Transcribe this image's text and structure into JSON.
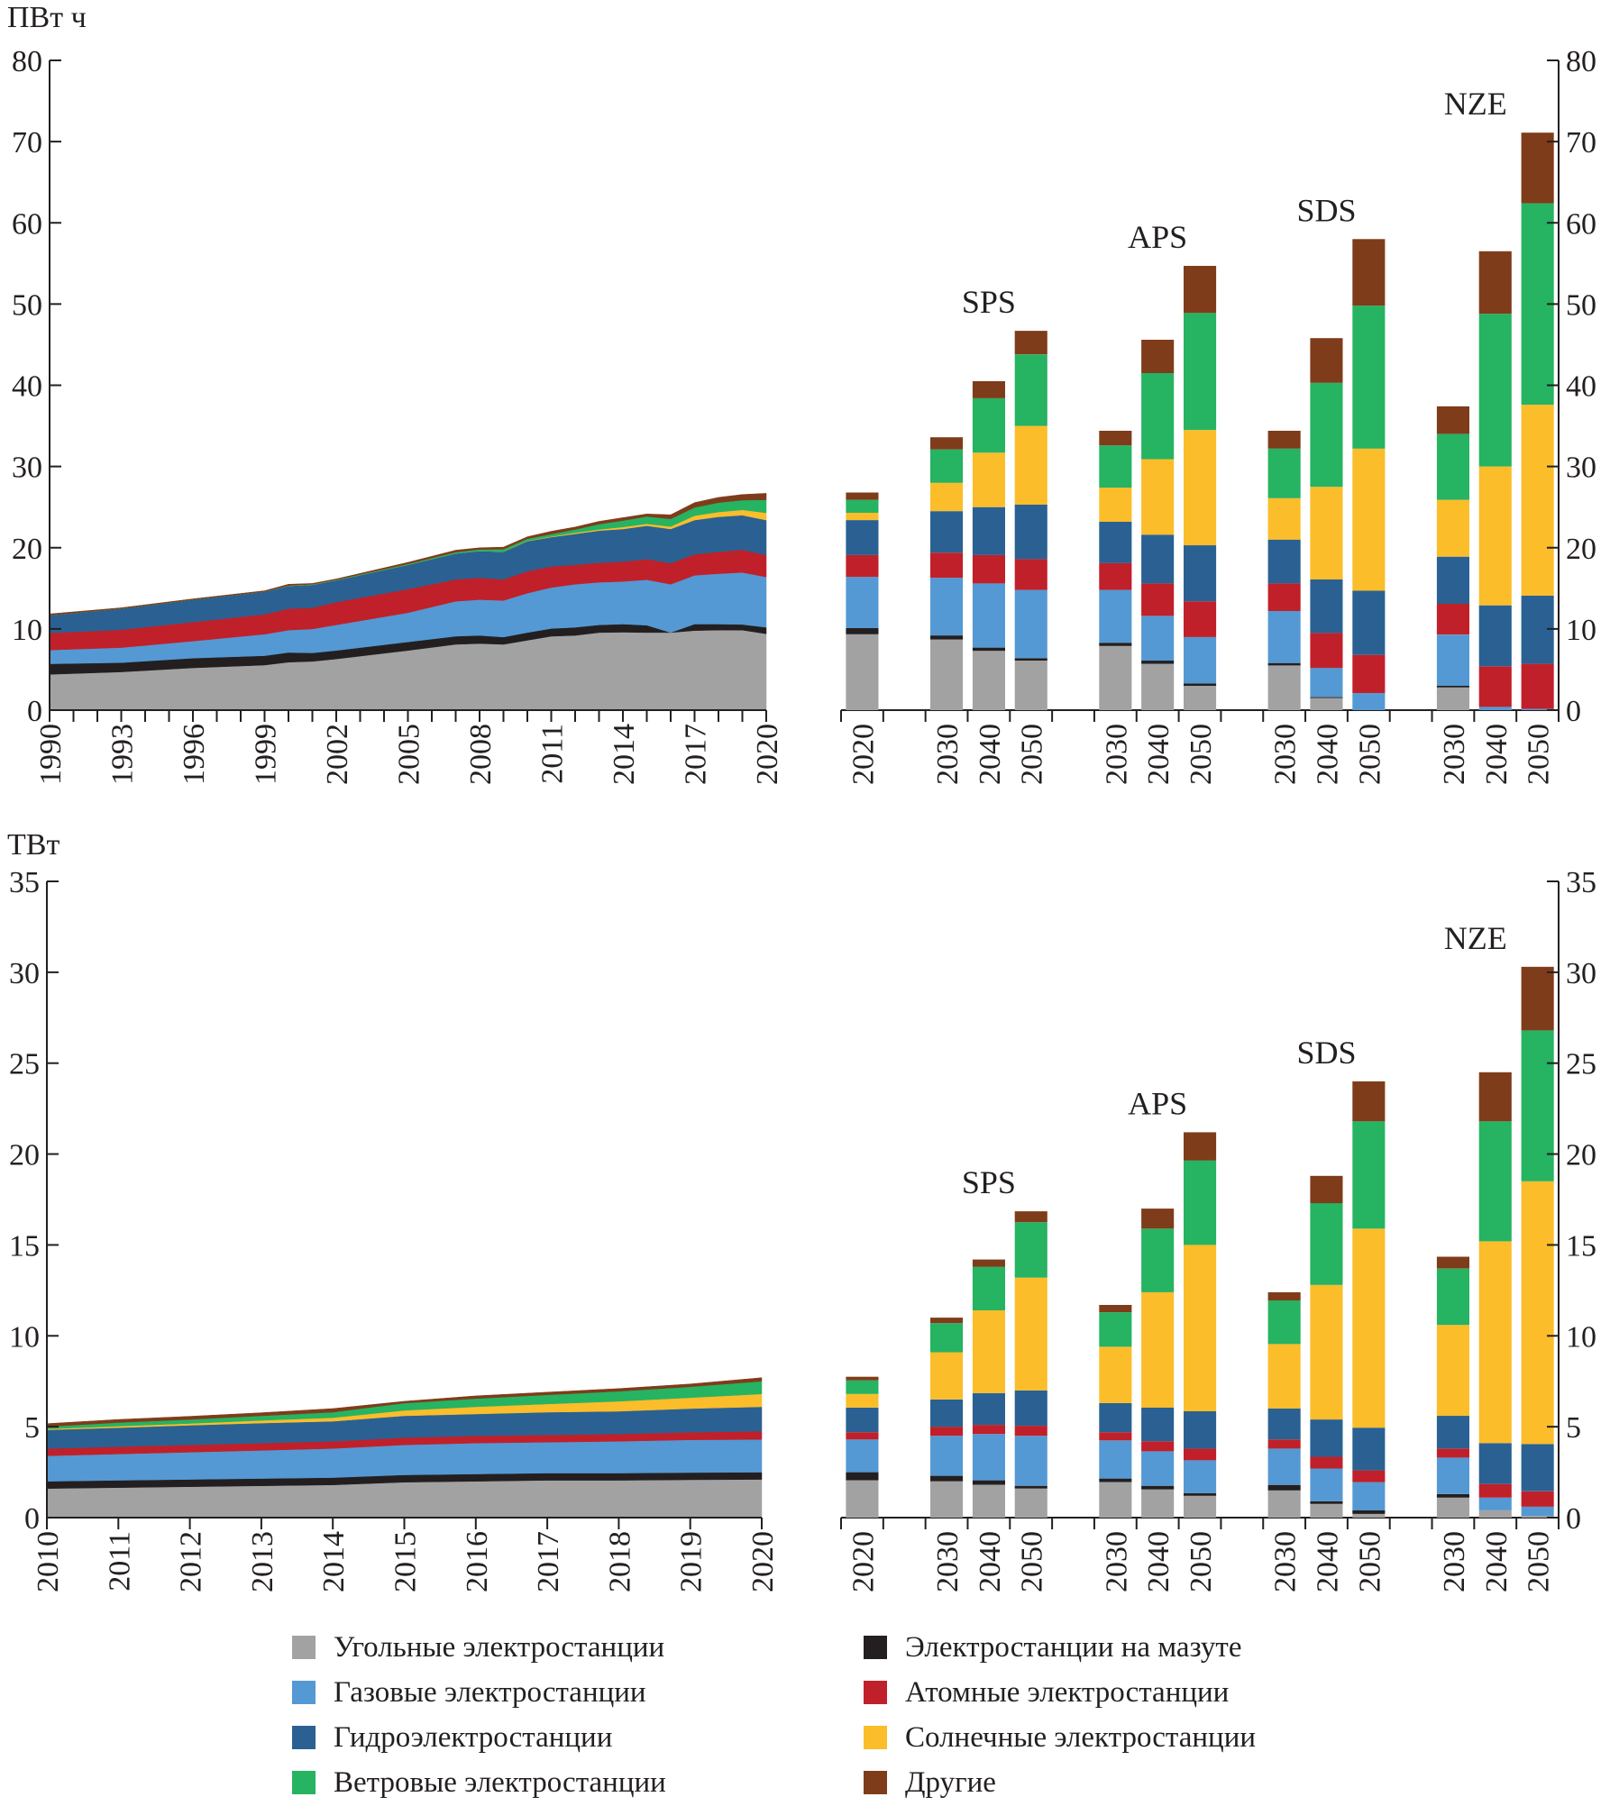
{
  "series": [
    {
      "key": "coal",
      "name": "Угольные электростанции",
      "color": "#a2a2a2"
    },
    {
      "key": "oil",
      "name": "Электростанции на мазуте",
      "color": "#231f20"
    },
    {
      "key": "gas",
      "name": "Газовые электростанции",
      "color": "#5499d3"
    },
    {
      "key": "nuclear",
      "name": "Атомные электростанции",
      "color": "#c0202a"
    },
    {
      "key": "hydro",
      "name": "Гидроэлектростанции",
      "color": "#2a6192"
    },
    {
      "key": "solar",
      "name": "Солнечные электростанции",
      "color": "#fbbd2a"
    },
    {
      "key": "wind",
      "name": "Ветровые электростанции",
      "color": "#26b362"
    },
    {
      "key": "other",
      "name": "Другие",
      "color": "#7f3c1a"
    }
  ],
  "legend_order": [
    "coal",
    "oil",
    "gas",
    "nuclear",
    "hydro",
    "solar",
    "wind",
    "other"
  ],
  "chart_data": [
    {
      "type": "area+stacked-bar",
      "title": "",
      "ylabel": "ПВт ч",
      "ylim": [
        0,
        80
      ],
      "yticks": [
        0,
        10,
        20,
        30,
        40,
        50,
        60,
        70,
        80
      ],
      "stack_order": [
        "coal",
        "oil",
        "gas",
        "nuclear",
        "hydro",
        "solar",
        "wind",
        "other"
      ],
      "history": {
        "type": "area",
        "x": [
          1990,
          1993,
          1996,
          1999,
          2000,
          2001,
          2002,
          2005,
          2007,
          2008,
          2009,
          2010,
          2011,
          2012,
          2013,
          2014,
          2015,
          2016,
          2017,
          2018,
          2019,
          2020
        ],
        "xtick_labels": [
          "1990",
          "1993",
          "1996",
          "1999",
          "2002",
          "2005",
          "2008",
          "2011",
          "2014",
          "2017",
          "2020"
        ],
        "series": {
          "coal": [
            4.4,
            4.7,
            5.2,
            5.55,
            5.9,
            6.0,
            6.3,
            7.35,
            8.1,
            8.2,
            8.1,
            8.6,
            9.1,
            9.2,
            9.55,
            9.6,
            9.55,
            9.55,
            9.8,
            9.85,
            9.85,
            9.4
          ],
          "oil": [
            1.3,
            1.15,
            1.2,
            1.15,
            1.2,
            1.05,
            1.05,
            1.05,
            1.0,
            1.0,
            0.9,
            0.95,
            0.95,
            1.0,
            0.95,
            1.0,
            0.9,
            0.0,
            0.8,
            0.75,
            0.7,
            0.8
          ],
          "gas": [
            1.7,
            1.85,
            2.1,
            2.65,
            2.75,
            2.95,
            3.15,
            3.6,
            4.3,
            4.4,
            4.5,
            4.85,
            5.05,
            5.3,
            5.25,
            5.25,
            5.6,
            5.95,
            6.0,
            6.2,
            6.4,
            6.2
          ],
          "nuclear": [
            2.1,
            2.2,
            2.35,
            2.45,
            2.65,
            2.6,
            2.8,
            2.9,
            2.7,
            2.7,
            2.6,
            2.7,
            2.6,
            2.4,
            2.4,
            2.45,
            2.55,
            2.6,
            2.6,
            2.7,
            2.8,
            2.7
          ],
          "hydro": [
            2.2,
            2.6,
            2.75,
            2.8,
            2.8,
            2.85,
            2.7,
            3.0,
            3.2,
            3.3,
            3.4,
            3.7,
            3.6,
            3.8,
            3.95,
            4.0,
            4.1,
            4.2,
            4.2,
            4.3,
            4.25,
            4.3
          ],
          "solar": [
            0,
            0,
            0,
            0,
            0,
            0,
            0,
            0,
            0,
            0,
            0.02,
            0.05,
            0.07,
            0.15,
            0.15,
            0.25,
            0.25,
            0.3,
            0.55,
            0.6,
            0.65,
            0.9
          ],
          "wind": [
            0,
            0,
            0,
            0,
            0.05,
            0.05,
            0.05,
            0.1,
            0.15,
            0.2,
            0.3,
            0.25,
            0.3,
            0.4,
            0.65,
            0.8,
            0.9,
            0.95,
            1.0,
            1.15,
            1.2,
            1.6
          ],
          "other": [
            0.15,
            0.1,
            0.1,
            0.1,
            0.15,
            0.1,
            0.1,
            0.2,
            0.25,
            0.2,
            0.25,
            0.25,
            0.35,
            0.3,
            0.35,
            0.35,
            0.3,
            0.5,
            0.6,
            0.65,
            0.7,
            0.8
          ]
        }
      },
      "projections": {
        "type": "stacked-bar",
        "bars": [
          {
            "label": "2020",
            "group": "",
            "values": {
              "coal": 9.35,
              "oil": 0.75,
              "gas": 6.3,
              "nuclear": 2.7,
              "hydro": 4.3,
              "solar": 0.9,
              "wind": 1.6,
              "other": 0.9
            }
          },
          {
            "label": "2030",
            "group": "SPS",
            "values": {
              "coal": 8.7,
              "oil": 0.5,
              "gas": 7.1,
              "nuclear": 3.1,
              "hydro": 5.1,
              "solar": 3.5,
              "wind": 4.1,
              "other": 1.5
            }
          },
          {
            "label": "2040",
            "group": "SPS",
            "values": {
              "coal": 7.3,
              "oil": 0.4,
              "gas": 7.9,
              "nuclear": 3.5,
              "hydro": 5.9,
              "solar": 6.7,
              "wind": 6.7,
              "other": 2.1
            }
          },
          {
            "label": "2050",
            "group": "SPS",
            "values": {
              "coal": 6.1,
              "oil": 0.3,
              "gas": 8.4,
              "nuclear": 3.8,
              "hydro": 6.7,
              "solar": 9.7,
              "wind": 8.8,
              "other": 2.9
            }
          },
          {
            "label": "2030",
            "group": "APS",
            "values": {
              "coal": 7.9,
              "oil": 0.4,
              "gas": 6.5,
              "nuclear": 3.3,
              "hydro": 5.1,
              "solar": 4.2,
              "wind": 5.2,
              "other": 1.8
            }
          },
          {
            "label": "2040",
            "group": "APS",
            "values": {
              "coal": 5.7,
              "oil": 0.4,
              "gas": 5.5,
              "nuclear": 4.0,
              "hydro": 6.0,
              "solar": 9.3,
              "wind": 10.6,
              "other": 4.1
            }
          },
          {
            "label": "2050",
            "group": "APS",
            "values": {
              "coal": 3.0,
              "oil": 0.3,
              "gas": 5.7,
              "nuclear": 4.4,
              "hydro": 6.9,
              "solar": 14.2,
              "wind": 14.4,
              "other": 5.8
            }
          },
          {
            "label": "2030",
            "group": "SDS",
            "values": {
              "coal": 5.5,
              "oil": 0.3,
              "gas": 6.4,
              "nuclear": 3.4,
              "hydro": 5.4,
              "solar": 5.1,
              "wind": 6.1,
              "other": 2.2
            }
          },
          {
            "label": "2040",
            "group": "SDS",
            "values": {
              "coal": 1.5,
              "oil": 0.1,
              "gas": 3.6,
              "nuclear": 4.3,
              "hydro": 6.6,
              "solar": 11.4,
              "wind": 12.8,
              "other": 5.5
            }
          },
          {
            "label": "2050",
            "group": "SDS",
            "values": {
              "coal": 0,
              "oil": 0,
              "gas": 2.1,
              "nuclear": 4.7,
              "hydro": 7.9,
              "solar": 17.5,
              "wind": 17.6,
              "other": 8.2
            }
          },
          {
            "label": "2030",
            "group": "NZE",
            "values": {
              "coal": 2.8,
              "oil": 0.2,
              "gas": 6.3,
              "nuclear": 3.8,
              "hydro": 5.8,
              "solar": 7.0,
              "wind": 8.1,
              "other": 3.4
            }
          },
          {
            "label": "2040",
            "group": "NZE",
            "values": {
              "coal": 0,
              "oil": 0,
              "gas": 0.4,
              "nuclear": 5.0,
              "hydro": 7.5,
              "solar": 17.1,
              "wind": 18.8,
              "other": 7.7
            }
          },
          {
            "label": "2050",
            "group": "NZE",
            "values": {
              "coal": 0,
              "oil": 0,
              "gas": 0.15,
              "nuclear": 5.55,
              "hydro": 8.4,
              "solar": 23.5,
              "wind": 24.8,
              "other": 8.7
            }
          }
        ],
        "groups": [
          "SPS",
          "APS",
          "SDS",
          "NZE"
        ]
      }
    },
    {
      "type": "area+stacked-bar",
      "title": "",
      "ylabel": "ТВт",
      "ylim": [
        0,
        35
      ],
      "yticks": [
        0,
        5,
        10,
        15,
        20,
        25,
        30,
        35
      ],
      "stack_order": [
        "coal",
        "oil",
        "gas",
        "nuclear",
        "hydro",
        "solar",
        "wind",
        "other"
      ],
      "history": {
        "type": "area",
        "x": [
          2010,
          2011,
          2012,
          2013,
          2014,
          2015,
          2016,
          2017,
          2018,
          2019,
          2020
        ],
        "xtick_labels": [
          "2010",
          "2011",
          "2012",
          "2013",
          "2014",
          "2015",
          "2016",
          "2017",
          "2018",
          "2019",
          "2020"
        ],
        "series": {
          "coal": [
            1.6,
            1.65,
            1.7,
            1.75,
            1.8,
            1.95,
            2.0,
            2.05,
            2.05,
            2.08,
            2.1
          ],
          "oil": [
            0.4,
            0.4,
            0.4,
            0.4,
            0.4,
            0.4,
            0.4,
            0.4,
            0.4,
            0.4,
            0.4
          ],
          "gas": [
            1.4,
            1.45,
            1.5,
            1.55,
            1.6,
            1.65,
            1.7,
            1.7,
            1.75,
            1.8,
            1.8
          ],
          "nuclear": [
            0.4,
            0.4,
            0.4,
            0.4,
            0.4,
            0.4,
            0.4,
            0.4,
            0.4,
            0.42,
            0.45
          ],
          "hydro": [
            1.03,
            1.05,
            1.08,
            1.1,
            1.1,
            1.2,
            1.2,
            1.25,
            1.25,
            1.3,
            1.35
          ],
          "solar": [
            0.05,
            0.08,
            0.1,
            0.15,
            0.2,
            0.3,
            0.4,
            0.45,
            0.55,
            0.6,
            0.7
          ],
          "wind": [
            0.12,
            0.2,
            0.22,
            0.25,
            0.3,
            0.4,
            0.45,
            0.5,
            0.55,
            0.6,
            0.7
          ],
          "other": [
            0.17,
            0.17,
            0.17,
            0.17,
            0.2,
            0.1,
            0.15,
            0.15,
            0.15,
            0.15,
            0.2
          ]
        }
      },
      "projections": {
        "type": "stacked-bar",
        "bars": [
          {
            "label": "2020",
            "group": "",
            "values": {
              "coal": 2.06,
              "oil": 0.44,
              "gas": 1.8,
              "nuclear": 0.4,
              "hydro": 1.35,
              "solar": 0.75,
              "wind": 0.75,
              "other": 0.2
            }
          },
          {
            "label": "2030",
            "group": "SPS",
            "values": {
              "coal": 2.0,
              "oil": 0.3,
              "gas": 2.2,
              "nuclear": 0.5,
              "hydro": 1.5,
              "solar": 2.6,
              "wind": 1.6,
              "other": 0.3
            }
          },
          {
            "label": "2040",
            "group": "SPS",
            "values": {
              "coal": 1.8,
              "oil": 0.25,
              "gas": 2.55,
              "nuclear": 0.5,
              "hydro": 1.75,
              "solar": 4.55,
              "wind": 2.4,
              "other": 0.4
            }
          },
          {
            "label": "2050",
            "group": "SPS",
            "values": {
              "coal": 1.6,
              "oil": 0.15,
              "gas": 2.75,
              "nuclear": 0.55,
              "hydro": 1.95,
              "solar": 6.2,
              "wind": 3.05,
              "other": 0.6
            }
          },
          {
            "label": "2030",
            "group": "APS",
            "values": {
              "coal": 1.95,
              "oil": 0.2,
              "gas": 2.1,
              "nuclear": 0.45,
              "hydro": 1.6,
              "solar": 3.1,
              "wind": 1.9,
              "other": 0.4
            }
          },
          {
            "label": "2040",
            "group": "APS",
            "values": {
              "coal": 1.55,
              "oil": 0.2,
              "gas": 1.9,
              "nuclear": 0.55,
              "hydro": 1.85,
              "solar": 6.35,
              "wind": 3.5,
              "other": 1.1
            }
          },
          {
            "label": "2050",
            "group": "APS",
            "values": {
              "coal": 1.2,
              "oil": 0.15,
              "gas": 1.8,
              "nuclear": 0.65,
              "hydro": 2.05,
              "solar": 9.15,
              "wind": 4.65,
              "other": 1.55
            }
          },
          {
            "label": "2030",
            "group": "SDS",
            "values": {
              "coal": 1.5,
              "oil": 0.3,
              "gas": 2.0,
              "nuclear": 0.5,
              "hydro": 1.7,
              "solar": 3.55,
              "wind": 2.4,
              "other": 0.45
            }
          },
          {
            "label": "2040",
            "group": "SDS",
            "values": {
              "coal": 0.75,
              "oil": 0.15,
              "gas": 1.8,
              "nuclear": 0.65,
              "hydro": 2.05,
              "solar": 7.4,
              "wind": 4.5,
              "other": 1.5
            }
          },
          {
            "label": "2050",
            "group": "SDS",
            "values": {
              "coal": 0.2,
              "oil": 0.2,
              "gas": 1.55,
              "nuclear": 0.65,
              "hydro": 2.35,
              "solar": 10.95,
              "wind": 5.9,
              "other": 2.2
            }
          },
          {
            "label": "2030",
            "group": "NZE",
            "values": {
              "coal": 1.1,
              "oil": 0.2,
              "gas": 2.0,
              "nuclear": 0.5,
              "hydro": 1.8,
              "solar": 5.0,
              "wind": 3.1,
              "other": 0.65
            }
          },
          {
            "label": "2040",
            "group": "NZE",
            "values": {
              "coal": 0.4,
              "oil": 0,
              "gas": 0.7,
              "nuclear": 0.75,
              "hydro": 2.25,
              "solar": 11.1,
              "wind": 6.6,
              "other": 2.7
            }
          },
          {
            "label": "2050",
            "group": "NZE",
            "values": {
              "coal": 0.1,
              "oil": 0,
              "gas": 0.5,
              "nuclear": 0.85,
              "hydro": 2.6,
              "solar": 14.45,
              "wind": 8.3,
              "other": 3.5
            }
          }
        ],
        "groups": [
          "SPS",
          "APS",
          "SDS",
          "NZE"
        ]
      }
    }
  ]
}
